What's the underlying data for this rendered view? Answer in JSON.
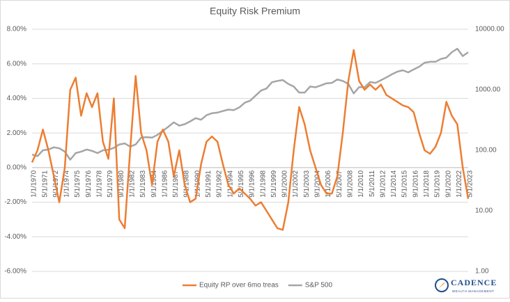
{
  "chart_data": {
    "type": "line",
    "title": "Equity Risk Premium",
    "categories": [
      "1/1/1970",
      null,
      "5/1/1971",
      null,
      "9/1/1972",
      null,
      "1/1/1974",
      null,
      "5/1/1975",
      null,
      "9/1/1976",
      null,
      "1/1/1978",
      null,
      "5/1/1979",
      null,
      "9/1/1980",
      null,
      "1/1/1982",
      null,
      "5/1/1983",
      null,
      "9/1/1984",
      null,
      "1/1/1986",
      null,
      "5/1/1987",
      null,
      "9/1/1988",
      null,
      "1/1/1990",
      null,
      "5/1/1991",
      null,
      "9/1/1992",
      null,
      "1/1/1994",
      null,
      "5/1/1995",
      null,
      "9/1/1996",
      null,
      "1/1/1998",
      null,
      "5/1/1999",
      null,
      "9/1/2000",
      null,
      "1/1/2002",
      null,
      "5/1/2003",
      null,
      "9/1/2004",
      null,
      "1/1/2006",
      null,
      "5/1/2007",
      null,
      "9/1/2008",
      null,
      "1/1/2010",
      null,
      "5/1/2011",
      null,
      "9/1/2012",
      null,
      "1/1/2014",
      null,
      "5/1/2015",
      null,
      "9/1/2016",
      null,
      "1/1/2018",
      null,
      "5/1/2019",
      null,
      "9/1/2020",
      null,
      "1/1/2022",
      null,
      "5/1/2023"
    ],
    "series": [
      {
        "name": "Equity RP over 6mo treas",
        "color": "#ed7d31",
        "values": [
          0.3,
          1.0,
          2.2,
          1.0,
          -0.5,
          -2.0,
          0.0,
          4.5,
          5.2,
          3.0,
          4.3,
          3.5,
          4.3,
          1.5,
          0.5,
          4.0,
          -3.0,
          -3.5,
          1.0,
          5.3,
          2.0,
          1.0,
          -1.0,
          1.5,
          2.2,
          1.5,
          -0.5,
          1.0,
          -1.0,
          -2.0,
          -1.8,
          0.2,
          1.5,
          1.8,
          1.5,
          0.2,
          -1.0,
          -1.5,
          -1.2,
          -1.5,
          -1.8,
          -2.2,
          -2.0,
          -2.5,
          -3.0,
          -3.5,
          -3.6,
          -2.0,
          1.0,
          3.5,
          2.5,
          1.0,
          0.0,
          -1.0,
          -1.5,
          -1.5,
          -0.5,
          2.0,
          5.0,
          6.8,
          5.0,
          4.5,
          4.8,
          4.5,
          4.8,
          4.2,
          4.0,
          3.8,
          3.6,
          3.5,
          3.2,
          2.0,
          1.0,
          0.8,
          1.2,
          2.0,
          3.8,
          3.0,
          2.5,
          0.0,
          -1.8
        ]
      },
      {
        "name": "S&P 500",
        "color": "#a5a5a5",
        "axis": "y2",
        "values": [
          85,
          80,
          100,
          103,
          112,
          108,
          95,
          70,
          90,
          95,
          103,
          98,
          90,
          100,
          102,
          110,
          125,
          130,
          115,
          125,
          162,
          165,
          162,
          180,
          210,
          245,
          290,
          255,
          270,
          300,
          340,
          320,
          380,
          410,
          420,
          445,
          470,
          460,
          510,
          610,
          660,
          800,
          970,
          1050,
          1330,
          1400,
          1450,
          1250,
          1130,
          900,
          900,
          1130,
          1100,
          1180,
          1280,
          1300,
          1480,
          1400,
          1250,
          870,
          1110,
          1100,
          1340,
          1300,
          1440,
          1600,
          1800,
          1990,
          2100,
          1940,
          2170,
          2400,
          2800,
          2900,
          2900,
          3230,
          3400,
          4180,
          4770,
          3600,
          4170
        ]
      }
    ],
    "ylim": [
      -6,
      8
    ],
    "yticks": [
      {
        "value": -6,
        "label": "-6.00%"
      },
      {
        "value": -4,
        "label": "-4.00%"
      },
      {
        "value": -2,
        "label": "-2.00%"
      },
      {
        "value": 0,
        "label": "0.00%"
      },
      {
        "value": 2,
        "label": "2.00%"
      },
      {
        "value": 4,
        "label": "4.00%"
      },
      {
        "value": 6,
        "label": "6.00%"
      },
      {
        "value": 8,
        "label": "8.00%"
      }
    ],
    "y2lim": [
      1,
      10000
    ],
    "y2ticks": [
      {
        "value": 1,
        "label": "1.00"
      },
      {
        "value": 10,
        "label": "10.00"
      },
      {
        "value": 100,
        "label": "100.00"
      },
      {
        "value": 1000,
        "label": "1000.00"
      },
      {
        "value": 10000,
        "label": "10000.00"
      }
    ],
    "y2log": true,
    "grid": true,
    "legend": "bottom"
  },
  "logo": {
    "name": "CADENCE",
    "tagline": "WEALTH MANAGEMENT"
  }
}
